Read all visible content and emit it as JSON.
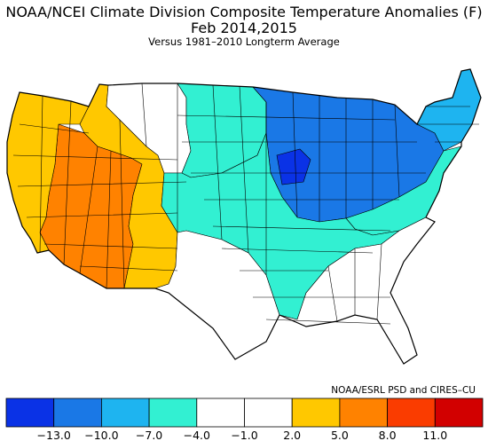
{
  "title": "NOAA/NCEI Climate Division Composite Temperature Anomalies (F)",
  "subtitle": "Feb  2014,2015",
  "note": "Versus 1981–2010 Longterm Average",
  "credit": "NOAA/ESRL PSD and CIRES–CU",
  "legend": {
    "colors": [
      "#0a32e6",
      "#1a78e6",
      "#1eb4f0",
      "#32f0d2",
      "#ffffff",
      "#ffffff",
      "#ffc800",
      "#ff8200",
      "#fa3c00",
      "#d20000"
    ],
    "tick_labels": [
      "−13.0",
      "−10.0",
      "−7.0",
      "−4.0",
      "−1.0",
      "2.0",
      "5.0",
      "8.0",
      "11.0"
    ]
  },
  "regions": [
    {
      "name": "pacific-coast",
      "color": "#ffc800"
    },
    {
      "name": "great-basin-southwest",
      "color": "#ff8200"
    },
    {
      "name": "idaho-utah-new-mexico",
      "color": "#ffc800"
    },
    {
      "name": "north-rockies",
      "color": "#ffffff"
    },
    {
      "name": "northern-plains",
      "color": "#32f0d2"
    },
    {
      "name": "central-plains",
      "color": "#32f0d2"
    },
    {
      "name": "upper-midwest",
      "color": "#1a78e6"
    },
    {
      "name": "great-lakes-core",
      "color": "#0a32e6"
    },
    {
      "name": "ohio-valley",
      "color": "#1a78e6"
    },
    {
      "name": "new-england",
      "color": "#1eb4f0"
    },
    {
      "name": "mid-atlantic",
      "color": "#32f0d2"
    },
    {
      "name": "southern-plains",
      "color": "#ffffff"
    },
    {
      "name": "gulf-coast-south",
      "color": "#ffffff"
    }
  ]
}
